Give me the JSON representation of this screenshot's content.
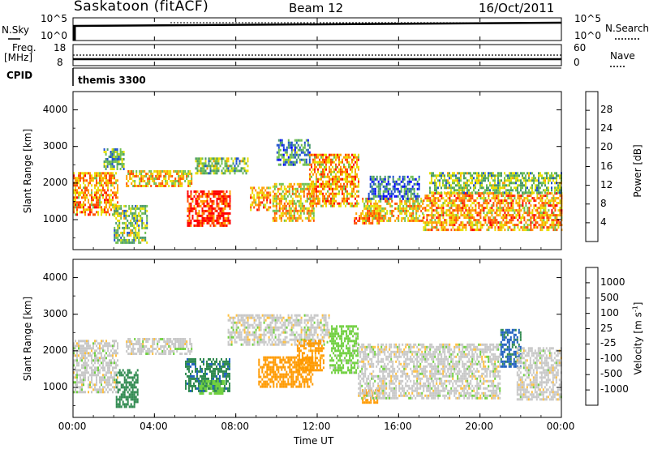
{
  "header": {
    "station": "Saskatoon (fitACF)",
    "beam": "Beam 12",
    "date": "16/Oct/2011"
  },
  "summary": {
    "nsky_label": "N.Sky",
    "nsearch_label": "N.Search",
    "freq_label_1": "Freq.",
    "freq_label_2": "[MHz]",
    "nave_label": "Nave",
    "cpid_label": "CPID",
    "cpid_value": "themis 3300",
    "left_top_tick": "10^5",
    "left_bottom_tick": "10^0",
    "right_top_tick": "10^5",
    "right_bottom_tick": "10^0",
    "freq_top_tick": "18",
    "freq_bottom_tick": "8",
    "nave_top_tick": "60",
    "nave_bottom_tick": "0"
  },
  "x_axis": {
    "label": "Time UT",
    "ticks": [
      "00:00",
      "04:00",
      "08:00",
      "12:00",
      "16:00",
      "20:00",
      "00:00"
    ],
    "range_hours": [
      0,
      24
    ]
  },
  "chart_data": [
    {
      "type": "heatmap",
      "title": "",
      "ylabel": "Slant Range [km]",
      "ylim": [
        180,
        4500
      ],
      "yticks": [
        "1000",
        "2000",
        "3000",
        "4000"
      ],
      "colorbar_label": "Power [dB]",
      "colorbar_ticks": [
        "28",
        "24",
        "20",
        "16",
        "12",
        "8",
        "4"
      ],
      "colorbar_colors": [
        "#0000ff",
        "#2050d0",
        "#4a9a6a",
        "#70c050",
        "#e8e000",
        "#ffa000",
        "#ff5000",
        "#ff0000"
      ],
      "regions": [
        {
          "t0": 0.0,
          "t1": 2.2,
          "r0": 1150,
          "r1": 2300,
          "value": 22
        },
        {
          "t0": 1.5,
          "t1": 2.5,
          "r0": 2400,
          "r1": 2950,
          "value": 12
        },
        {
          "t0": 2.0,
          "t1": 3.6,
          "r0": 400,
          "r1": 1400,
          "value": 14
        },
        {
          "t0": 2.6,
          "t1": 5.8,
          "r0": 1900,
          "r1": 2350,
          "value": 20
        },
        {
          "t0": 5.6,
          "t1": 7.7,
          "r0": 850,
          "r1": 1800,
          "value": 28
        },
        {
          "t0": 6.0,
          "t1": 8.6,
          "r0": 2300,
          "r1": 2700,
          "value": 14
        },
        {
          "t0": 8.7,
          "t1": 9.7,
          "r0": 1300,
          "r1": 1900,
          "value": 22
        },
        {
          "t0": 9.8,
          "t1": 11.8,
          "r0": 1000,
          "r1": 2000,
          "value": 20
        },
        {
          "t0": 10.0,
          "t1": 11.6,
          "r0": 2500,
          "r1": 3200,
          "value": 10
        },
        {
          "t0": 11.6,
          "t1": 14.0,
          "r0": 1400,
          "r1": 2800,
          "value": 22
        },
        {
          "t0": 13.8,
          "t1": 15.0,
          "r0": 900,
          "r1": 1200,
          "value": 26
        },
        {
          "t0": 14.2,
          "t1": 17.2,
          "r0": 950,
          "r1": 1600,
          "value": 20
        },
        {
          "t0": 14.5,
          "t1": 17.0,
          "r0": 1600,
          "r1": 2200,
          "value": 8
        },
        {
          "t0": 17.2,
          "t1": 24.0,
          "r0": 700,
          "r1": 1750,
          "value": 22
        },
        {
          "t0": 17.5,
          "t1": 24.0,
          "r0": 1750,
          "r1": 2300,
          "value": 14
        }
      ]
    },
    {
      "type": "heatmap",
      "title": "",
      "ylabel": "Slant Range [km]",
      "ylim": [
        180,
        4500
      ],
      "yticks": [
        "1000",
        "2000",
        "3000",
        "4000"
      ],
      "colorbar_label": "Velocity [m s",
      "colorbar_label_sup": "-1",
      "colorbar_label_end": "]",
      "colorbar_ticks": [
        "1000",
        "500",
        "100",
        "25",
        "-25",
        "-100",
        "-500",
        "-1000"
      ],
      "colorbar_colors": [
        "#ff0000",
        "#ff5000",
        "#ff9a00",
        "#ffc040",
        "#c8c8c8",
        "#70d040",
        "#308a50",
        "#2060c0",
        "#1030c8"
      ],
      "regions": [
        {
          "t0": 0.0,
          "t1": 2.2,
          "r0": 850,
          "r1": 2300,
          "value": 0
        },
        {
          "t0": 2.1,
          "t1": 3.2,
          "r0": 500,
          "r1": 1500,
          "value": 300
        },
        {
          "t0": 2.6,
          "t1": 5.8,
          "r0": 1900,
          "r1": 2350,
          "value": 0
        },
        {
          "t0": 5.5,
          "t1": 7.7,
          "r0": 900,
          "r1": 1800,
          "value": 400
        },
        {
          "t0": 6.2,
          "t1": 7.4,
          "r0": 850,
          "r1": 1200,
          "value": 80
        },
        {
          "t0": 7.6,
          "t1": 12.6,
          "r0": 2200,
          "r1": 3000,
          "value": 0
        },
        {
          "t0": 9.1,
          "t1": 11.8,
          "r0": 1000,
          "r1": 1850,
          "value": -300
        },
        {
          "t0": 11.0,
          "t1": 12.3,
          "r0": 1500,
          "r1": 2300,
          "value": -150
        },
        {
          "t0": 12.6,
          "t1": 14.0,
          "r0": 1400,
          "r1": 2700,
          "value": 50
        },
        {
          "t0": 14.2,
          "t1": 15.0,
          "r0": 600,
          "r1": 950,
          "value": -300
        },
        {
          "t0": 14.0,
          "t1": 21.0,
          "r0": 700,
          "r1": 2200,
          "value": 0
        },
        {
          "t0": 21.0,
          "t1": 22.0,
          "r0": 1600,
          "r1": 2600,
          "value": 600
        },
        {
          "t0": 21.8,
          "t1": 24.0,
          "r0": 700,
          "r1": 2100,
          "value": 0
        }
      ]
    }
  ]
}
